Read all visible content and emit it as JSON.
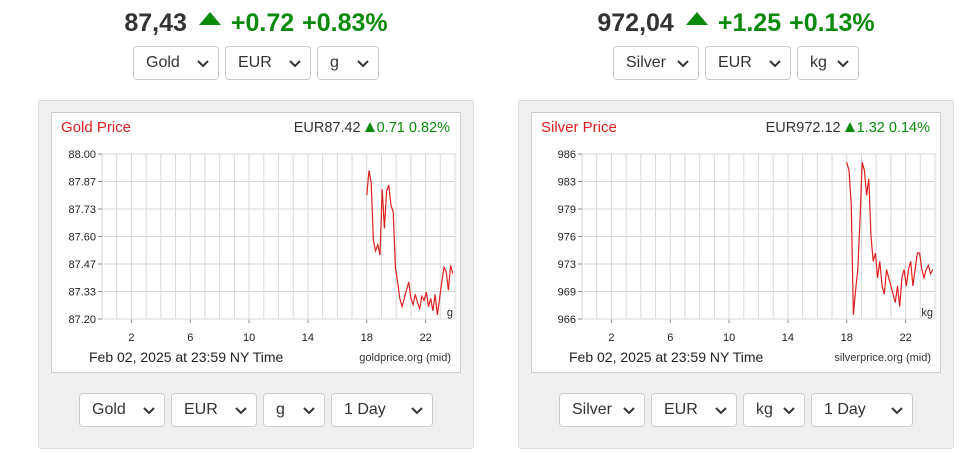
{
  "widgets": [
    {
      "ticker": {
        "price": "87,43",
        "change": "+0.72",
        "change_pct": "+0.83%"
      },
      "selects_top": [
        "Gold",
        "EUR",
        "g"
      ],
      "selects_bottom": [
        "Gold",
        "EUR",
        "g",
        "1 Day"
      ],
      "chart": {
        "title": "Gold Price",
        "quote_price": "EUR87.42",
        "quote_change": "0.71",
        "quote_pct": "0.82%",
        "footer_date": "Feb 02, 2025 at 23:59 NY Time",
        "source": "goldprice.org (mid)",
        "unit": "g"
      }
    },
    {
      "ticker": {
        "price": "972,04",
        "change": "+1.25",
        "change_pct": "+0.13%"
      },
      "selects_top": [
        "Silver",
        "EUR",
        "kg"
      ],
      "selects_bottom": [
        "Silver",
        "EUR",
        "kg",
        "1 Day"
      ],
      "chart": {
        "title": "Silver Price",
        "quote_price": "EUR972.12",
        "quote_change": "1.32",
        "quote_pct": "0.14%",
        "footer_date": "Feb 02, 2025 at 23:59 NY Time",
        "source": "silverprice.org (mid)",
        "unit": "kg"
      }
    }
  ],
  "colors": {
    "up": "#0a8a0a",
    "line": "#e02020",
    "grid": "#d8d8d8"
  },
  "chart_data": [
    {
      "type": "line",
      "title": "Gold Price",
      "xlabel": "",
      "ylabel": "",
      "x_ticks": [
        "2",
        "6",
        "10",
        "14",
        "18",
        "22"
      ],
      "y_ticks": [
        "88.00",
        "87.87",
        "87.73",
        "87.60",
        "87.47",
        "87.33",
        "87.20"
      ],
      "xlim": [
        0,
        24
      ],
      "ylim": [
        87.2,
        88.0
      ],
      "grid": true,
      "series": [
        {
          "x": [
            18.0,
            18.15,
            18.3,
            18.45,
            18.6,
            18.75,
            18.9,
            19.05,
            19.2,
            19.35,
            19.5,
            19.65,
            19.8,
            19.95,
            20.1,
            20.25,
            20.4,
            20.55,
            20.7,
            20.85,
            21.0,
            21.15,
            21.3,
            21.45,
            21.6,
            21.75,
            21.9,
            22.05,
            22.2,
            22.35,
            22.5,
            22.65,
            22.8,
            22.95,
            23.1,
            23.25,
            23.4,
            23.55,
            23.7,
            23.85
          ],
          "y": [
            87.8,
            87.92,
            87.86,
            87.58,
            87.53,
            87.56,
            87.51,
            87.83,
            87.64,
            87.82,
            87.85,
            87.75,
            87.72,
            87.45,
            87.38,
            87.3,
            87.26,
            87.3,
            87.34,
            87.38,
            87.3,
            87.27,
            87.32,
            87.28,
            87.25,
            87.31,
            87.29,
            87.33,
            87.26,
            87.3,
            87.24,
            87.32,
            87.22,
            87.3,
            87.38,
            87.45,
            87.43,
            87.34,
            87.46,
            87.42
          ]
        }
      ]
    },
    {
      "type": "line",
      "title": "Silver Price",
      "xlabel": "",
      "ylabel": "",
      "x_ticks": [
        "2",
        "6",
        "10",
        "14",
        "18",
        "22"
      ],
      "y_ticks": [
        "986",
        "983",
        "979",
        "976",
        "973",
        "969",
        "966"
      ],
      "xlim": [
        0,
        24
      ],
      "ylim": [
        966,
        986
      ],
      "grid": true,
      "series": [
        {
          "x": [
            18.0,
            18.15,
            18.3,
            18.45,
            18.6,
            18.75,
            18.9,
            19.05,
            19.2,
            19.35,
            19.5,
            19.65,
            19.8,
            19.95,
            20.1,
            20.25,
            20.4,
            20.55,
            20.7,
            20.85,
            21.0,
            21.15,
            21.3,
            21.45,
            21.6,
            21.75,
            21.9,
            22.05,
            22.2,
            22.35,
            22.5,
            22.65,
            22.8,
            22.95,
            23.1,
            23.25,
            23.4,
            23.55,
            23.7,
            23.85
          ],
          "y": [
            985,
            984,
            980,
            966.5,
            969.5,
            972,
            978,
            985,
            984,
            981,
            983,
            976,
            973,
            974,
            971,
            973,
            970,
            969,
            972,
            971,
            970,
            969,
            968,
            970,
            967.5,
            971,
            972,
            970,
            972,
            973,
            970,
            972,
            974,
            974,
            972,
            971,
            972,
            972.5,
            971.5,
            972
          ]
        }
      ]
    }
  ]
}
